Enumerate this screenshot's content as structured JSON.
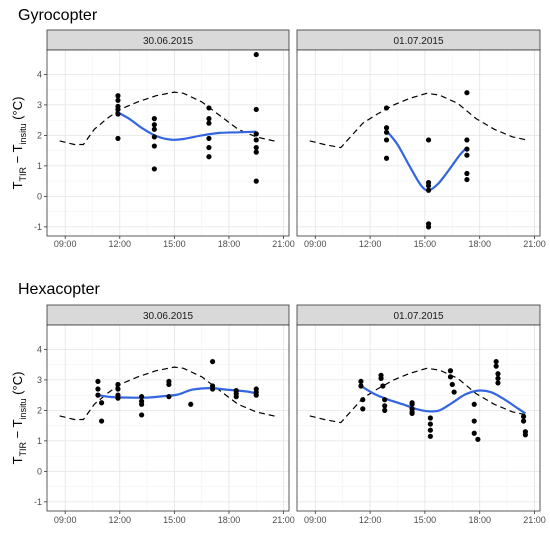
{
  "chart_data": [
    {
      "type": "scatter",
      "title": "Gyrocopter",
      "ylabel": {
        "main_left": "T",
        "sub_left": "TIR",
        "minus": " − T",
        "sub_right": "insitu",
        "unit": " (°C)"
      },
      "xlim": [
        8,
        21.3
      ],
      "ylim": [
        -1.3,
        4.8
      ],
      "x_ticks": [
        9,
        12,
        15,
        18,
        21
      ],
      "x_tick_labels": [
        "09:00",
        "12:00",
        "15:00",
        "18:00",
        "21:00"
      ],
      "y_ticks": [
        -1,
        0,
        1,
        2,
        3,
        4
      ],
      "y_tick_labels": [
        "-1",
        "0",
        "1",
        "2",
        "3",
        "4"
      ],
      "grid": true,
      "panels": [
        {
          "strip": "30.06.2015",
          "points": [
            [
              11.9,
              3.3
            ],
            [
              11.9,
              3.15
            ],
            [
              11.9,
              2.95
            ],
            [
              11.9,
              2.85
            ],
            [
              11.9,
              2.7
            ],
            [
              11.9,
              1.9
            ],
            [
              13.9,
              2.55
            ],
            [
              13.9,
              2.35
            ],
            [
              13.9,
              2.2
            ],
            [
              13.9,
              1.95
            ],
            [
              13.9,
              1.65
            ],
            [
              13.9,
              0.9
            ],
            [
              16.9,
              2.9
            ],
            [
              16.9,
              2.55
            ],
            [
              16.9,
              2.4
            ],
            [
              16.9,
              1.9
            ],
            [
              16.9,
              1.6
            ],
            [
              16.9,
              1.3
            ],
            [
              19.5,
              4.65
            ],
            [
              19.5,
              2.85
            ],
            [
              19.5,
              2.05
            ],
            [
              19.5,
              1.85
            ],
            [
              19.5,
              1.6
            ],
            [
              19.5,
              1.45
            ],
            [
              19.5,
              0.5
            ]
          ],
          "smooth": [
            [
              11.9,
              2.75
            ],
            [
              12.5,
              2.55
            ],
            [
              13.2,
              2.25
            ],
            [
              14,
              1.98
            ],
            [
              14.8,
              1.86
            ],
            [
              15.5,
              1.88
            ],
            [
              16.5,
              2.0
            ],
            [
              17.5,
              2.08
            ],
            [
              18.5,
              2.1
            ],
            [
              19.5,
              2.12
            ]
          ],
          "dashed": [
            [
              8.7,
              1.82
            ],
            [
              9.5,
              1.7
            ],
            [
              10,
              1.7
            ],
            [
              10.6,
              2.2
            ],
            [
              11.3,
              2.55
            ],
            [
              12,
              2.85
            ],
            [
              13,
              3.1
            ],
            [
              14,
              3.3
            ],
            [
              15,
              3.42
            ],
            [
              15.5,
              3.38
            ],
            [
              16.5,
              3.1
            ],
            [
              17.5,
              2.65
            ],
            [
              18.5,
              2.2
            ],
            [
              19.5,
              1.95
            ],
            [
              20.6,
              1.8
            ]
          ]
        },
        {
          "strip": "01.07.2015",
          "points": [
            [
              12.9,
              2.9
            ],
            [
              12.9,
              2.25
            ],
            [
              12.9,
              2.1
            ],
            [
              12.9,
              1.85
            ],
            [
              12.9,
              1.25
            ],
            [
              15.2,
              1.85
            ],
            [
              15.2,
              0.45
            ],
            [
              15.2,
              0.35
            ],
            [
              15.2,
              0.2
            ],
            [
              15.2,
              -0.9
            ],
            [
              15.2,
              -1.0
            ],
            [
              17.3,
              3.4
            ],
            [
              17.3,
              1.85
            ],
            [
              17.3,
              1.55
            ],
            [
              17.3,
              1.35
            ],
            [
              17.3,
              0.75
            ],
            [
              17.3,
              0.55
            ]
          ],
          "smooth": [
            [
              12.9,
              2.15
            ],
            [
              13.5,
              1.7
            ],
            [
              14.2,
              0.95
            ],
            [
              14.8,
              0.35
            ],
            [
              15.2,
              0.2
            ],
            [
              15.7,
              0.4
            ],
            [
              16.3,
              0.85
            ],
            [
              16.9,
              1.35
            ],
            [
              17.3,
              1.6
            ]
          ],
          "dashed": [
            [
              8.7,
              1.82
            ],
            [
              9.5,
              1.7
            ],
            [
              10.4,
              1.6
            ],
            [
              11,
              2.0
            ],
            [
              11.6,
              2.4
            ],
            [
              12.4,
              2.7
            ],
            [
              13.3,
              3.0
            ],
            [
              14.2,
              3.22
            ],
            [
              15.1,
              3.38
            ],
            [
              15.8,
              3.32
            ],
            [
              16.8,
              3.05
            ],
            [
              17.8,
              2.55
            ],
            [
              18.8,
              2.2
            ],
            [
              19.8,
              1.95
            ],
            [
              20.6,
              1.85
            ]
          ]
        }
      ]
    },
    {
      "type": "scatter",
      "title": "Hexacopter",
      "ylabel": {
        "main_left": "T",
        "sub_left": "TIR",
        "minus": " − T",
        "sub_right": "insitu",
        "unit": " (°C)"
      },
      "xlim": [
        8,
        21.3
      ],
      "ylim": [
        -1.3,
        4.8
      ],
      "x_ticks": [
        9,
        12,
        15,
        18,
        21
      ],
      "x_tick_labels": [
        "09:00",
        "12:00",
        "15:00",
        "18:00",
        "21:00"
      ],
      "y_ticks": [
        -1,
        0,
        1,
        2,
        3,
        4
      ],
      "y_tick_labels": [
        "-1",
        "0",
        "1",
        "2",
        "3",
        "4"
      ],
      "grid": true,
      "panels": [
        {
          "strip": "30.06.2015",
          "points": [
            [
              10.8,
              2.95
            ],
            [
              10.8,
              2.7
            ],
            [
              10.8,
              2.5
            ],
            [
              11,
              2.25
            ],
            [
              11,
              1.65
            ],
            [
              11.9,
              2.85
            ],
            [
              11.9,
              2.7
            ],
            [
              11.9,
              2.5
            ],
            [
              11.9,
              2.4
            ],
            [
              13.2,
              2.45
            ],
            [
              13.2,
              2.3
            ],
            [
              13.2,
              2.2
            ],
            [
              13.2,
              1.85
            ],
            [
              14.7,
              2.95
            ],
            [
              14.7,
              2.85
            ],
            [
              14.7,
              2.45
            ],
            [
              15.9,
              2.2
            ],
            [
              17.1,
              3.6
            ],
            [
              17.1,
              2.8
            ],
            [
              17.1,
              2.7
            ],
            [
              18.4,
              2.65
            ],
            [
              18.4,
              2.55
            ],
            [
              18.4,
              2.45
            ],
            [
              19.5,
              2.7
            ],
            [
              19.5,
              2.6
            ],
            [
              19.5,
              2.5
            ]
          ],
          "smooth": [
            [
              10.8,
              2.5
            ],
            [
              11.5,
              2.44
            ],
            [
              12.5,
              2.42
            ],
            [
              13.5,
              2.42
            ],
            [
              14.5,
              2.47
            ],
            [
              15.2,
              2.52
            ],
            [
              16,
              2.68
            ],
            [
              17,
              2.73
            ],
            [
              18,
              2.67
            ],
            [
              19,
              2.62
            ],
            [
              19.5,
              2.55
            ]
          ],
          "dashed": [
            [
              8.7,
              1.82
            ],
            [
              9.5,
              1.7
            ],
            [
              10,
              1.7
            ],
            [
              10.6,
              2.2
            ],
            [
              11.3,
              2.55
            ],
            [
              12,
              2.85
            ],
            [
              13,
              3.1
            ],
            [
              14,
              3.3
            ],
            [
              15,
              3.42
            ],
            [
              15.5,
              3.38
            ],
            [
              16.5,
              3.1
            ],
            [
              17.5,
              2.65
            ],
            [
              18.5,
              2.2
            ],
            [
              19.5,
              1.95
            ],
            [
              20.6,
              1.8
            ]
          ]
        },
        {
          "strip": "01.07.2015",
          "points": [
            [
              11.5,
              2.95
            ],
            [
              11.5,
              2.8
            ],
            [
              11.6,
              2.35
            ],
            [
              11.6,
              2.05
            ],
            [
              12.6,
              3.15
            ],
            [
              12.6,
              3.05
            ],
            [
              12.7,
              2.8
            ],
            [
              12.8,
              2.35
            ],
            [
              12.8,
              2.15
            ],
            [
              12.8,
              2.0
            ],
            [
              14.3,
              2.25
            ],
            [
              14.3,
              2.2
            ],
            [
              14.3,
              2.05
            ],
            [
              14.3,
              1.95
            ],
            [
              14.3,
              1.9
            ],
            [
              15.3,
              1.75
            ],
            [
              15.3,
              1.55
            ],
            [
              15.3,
              1.35
            ],
            [
              15.3,
              1.15
            ],
            [
              16.4,
              3.3
            ],
            [
              16.4,
              3.1
            ],
            [
              16.5,
              2.85
            ],
            [
              16.6,
              2.6
            ],
            [
              17.7,
              2.2
            ],
            [
              17.7,
              1.65
            ],
            [
              17.7,
              1.25
            ],
            [
              17.9,
              1.05
            ],
            [
              18.9,
              3.6
            ],
            [
              18.9,
              3.45
            ],
            [
              19,
              3.2
            ],
            [
              19,
              3.05
            ],
            [
              19,
              2.9
            ],
            [
              20.4,
              1.8
            ],
            [
              20.4,
              1.65
            ],
            [
              20.5,
              1.3
            ],
            [
              20.5,
              1.2
            ]
          ],
          "smooth": [
            [
              11.5,
              2.8
            ],
            [
              12.2,
              2.55
            ],
            [
              13,
              2.35
            ],
            [
              13.8,
              2.2
            ],
            [
              14.5,
              2.05
            ],
            [
              15.2,
              1.97
            ],
            [
              15.8,
              2.0
            ],
            [
              16.5,
              2.25
            ],
            [
              17.2,
              2.52
            ],
            [
              17.9,
              2.65
            ],
            [
              18.6,
              2.6
            ],
            [
              19.3,
              2.38
            ],
            [
              20,
              2.1
            ],
            [
              20.5,
              1.9
            ]
          ],
          "dashed": [
            [
              8.7,
              1.82
            ],
            [
              9.5,
              1.7
            ],
            [
              10.4,
              1.6
            ],
            [
              11,
              2.0
            ],
            [
              11.6,
              2.4
            ],
            [
              12.4,
              2.7
            ],
            [
              13.3,
              3.0
            ],
            [
              14.2,
              3.22
            ],
            [
              15.1,
              3.38
            ],
            [
              15.8,
              3.32
            ],
            [
              16.8,
              3.05
            ],
            [
              17.8,
              2.55
            ],
            [
              18.8,
              2.2
            ],
            [
              19.8,
              1.95
            ],
            [
              20.6,
              1.85
            ]
          ]
        }
      ]
    }
  ]
}
